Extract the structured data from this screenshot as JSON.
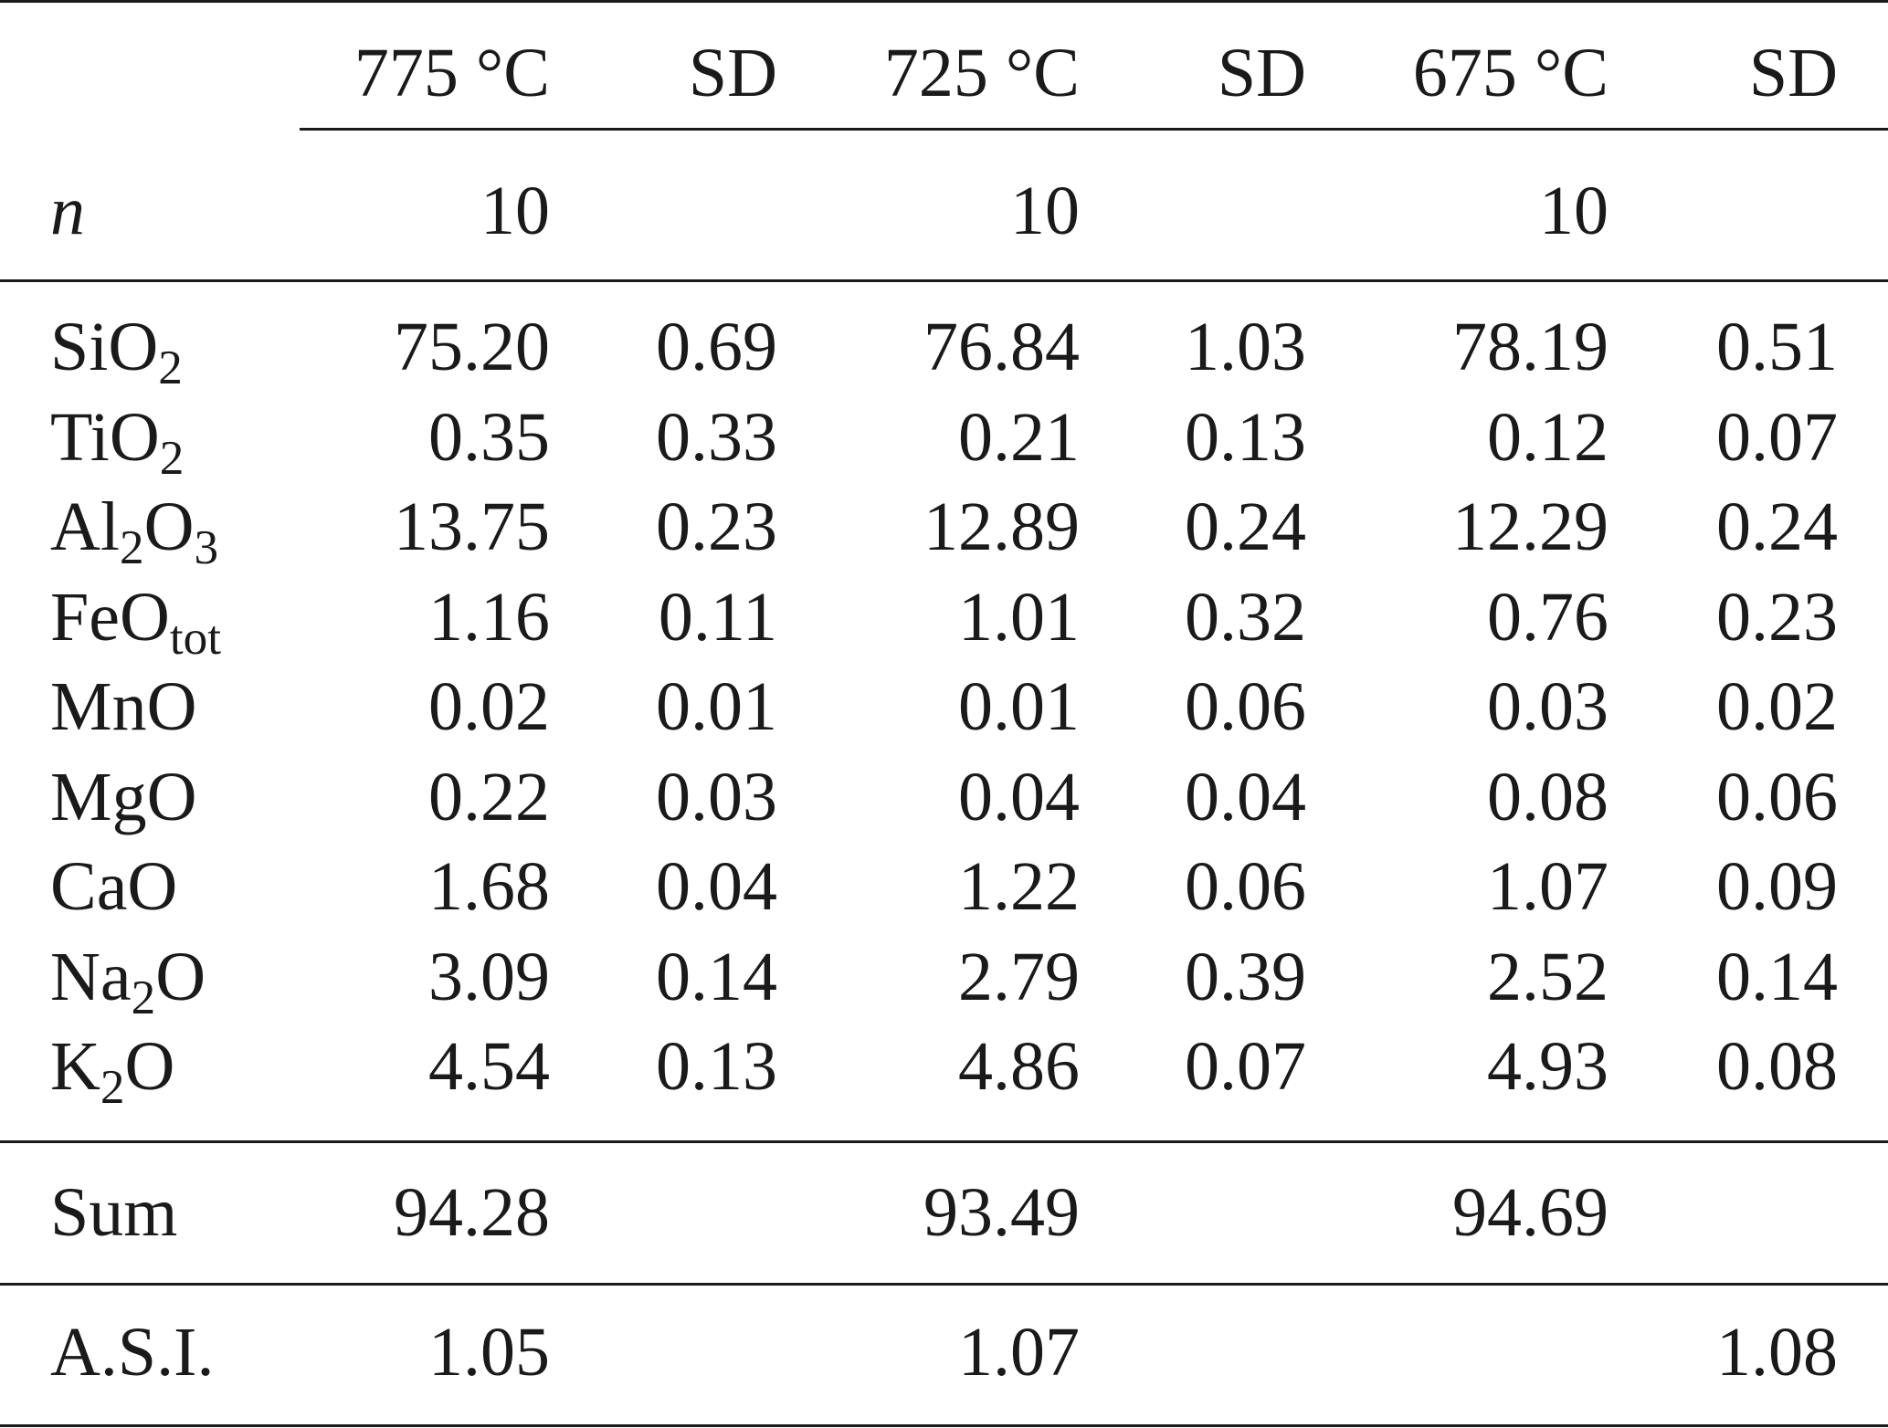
{
  "header": {
    "columns": [
      "775 °C",
      "SD",
      "725 °C",
      "SD",
      "675 °C",
      "SD"
    ]
  },
  "n_row": {
    "label": "n",
    "values": [
      "10",
      "",
      "10",
      "",
      "10",
      ""
    ]
  },
  "oxides": [
    {
      "base": "SiO",
      "sub": "2",
      "tail": "",
      "values": [
        "75.20",
        "0.69",
        "76.84",
        "1.03",
        "78.19",
        "0.51"
      ]
    },
    {
      "base": "TiO",
      "sub": "2",
      "tail": "",
      "values": [
        "0.35",
        "0.33",
        "0.21",
        "0.13",
        "0.12",
        "0.07"
      ]
    },
    {
      "base": "Al",
      "sub": "2",
      "tail": "O",
      "sub2": "3",
      "values": [
        "13.75",
        "0.23",
        "12.89",
        "0.24",
        "12.29",
        "0.24"
      ]
    },
    {
      "base": "FeO",
      "sub": "tot",
      "tail": "",
      "values": [
        "1.16",
        "0.11",
        "1.01",
        "0.32",
        "0.76",
        "0.23"
      ]
    },
    {
      "base": "MnO",
      "sub": "",
      "tail": "",
      "values": [
        "0.02",
        "0.01",
        "0.01",
        "0.06",
        "0.03",
        "0.02"
      ]
    },
    {
      "base": "MgO",
      "sub": "",
      "tail": "",
      "values": [
        "0.22",
        "0.03",
        "0.04",
        "0.04",
        "0.08",
        "0.06"
      ]
    },
    {
      "base": "CaO",
      "sub": "",
      "tail": "",
      "values": [
        "1.68",
        "0.04",
        "1.22",
        "0.06",
        "1.07",
        "0.09"
      ]
    },
    {
      "base": "Na",
      "sub": "2",
      "tail": "O",
      "values": [
        "3.09",
        "0.14",
        "2.79",
        "0.39",
        "2.52",
        "0.14"
      ]
    },
    {
      "base": "K",
      "sub": "2",
      "tail": "O",
      "values": [
        "4.54",
        "0.13",
        "4.86",
        "0.07",
        "4.93",
        "0.08"
      ]
    }
  ],
  "sum_row": {
    "label": "Sum",
    "values": [
      "94.28",
      "",
      "93.49",
      "",
      "94.69",
      ""
    ]
  },
  "asi_row": {
    "label": "A.S.I.",
    "values": [
      "1.05",
      "",
      "1.07",
      "",
      "",
      "1.08"
    ]
  }
}
